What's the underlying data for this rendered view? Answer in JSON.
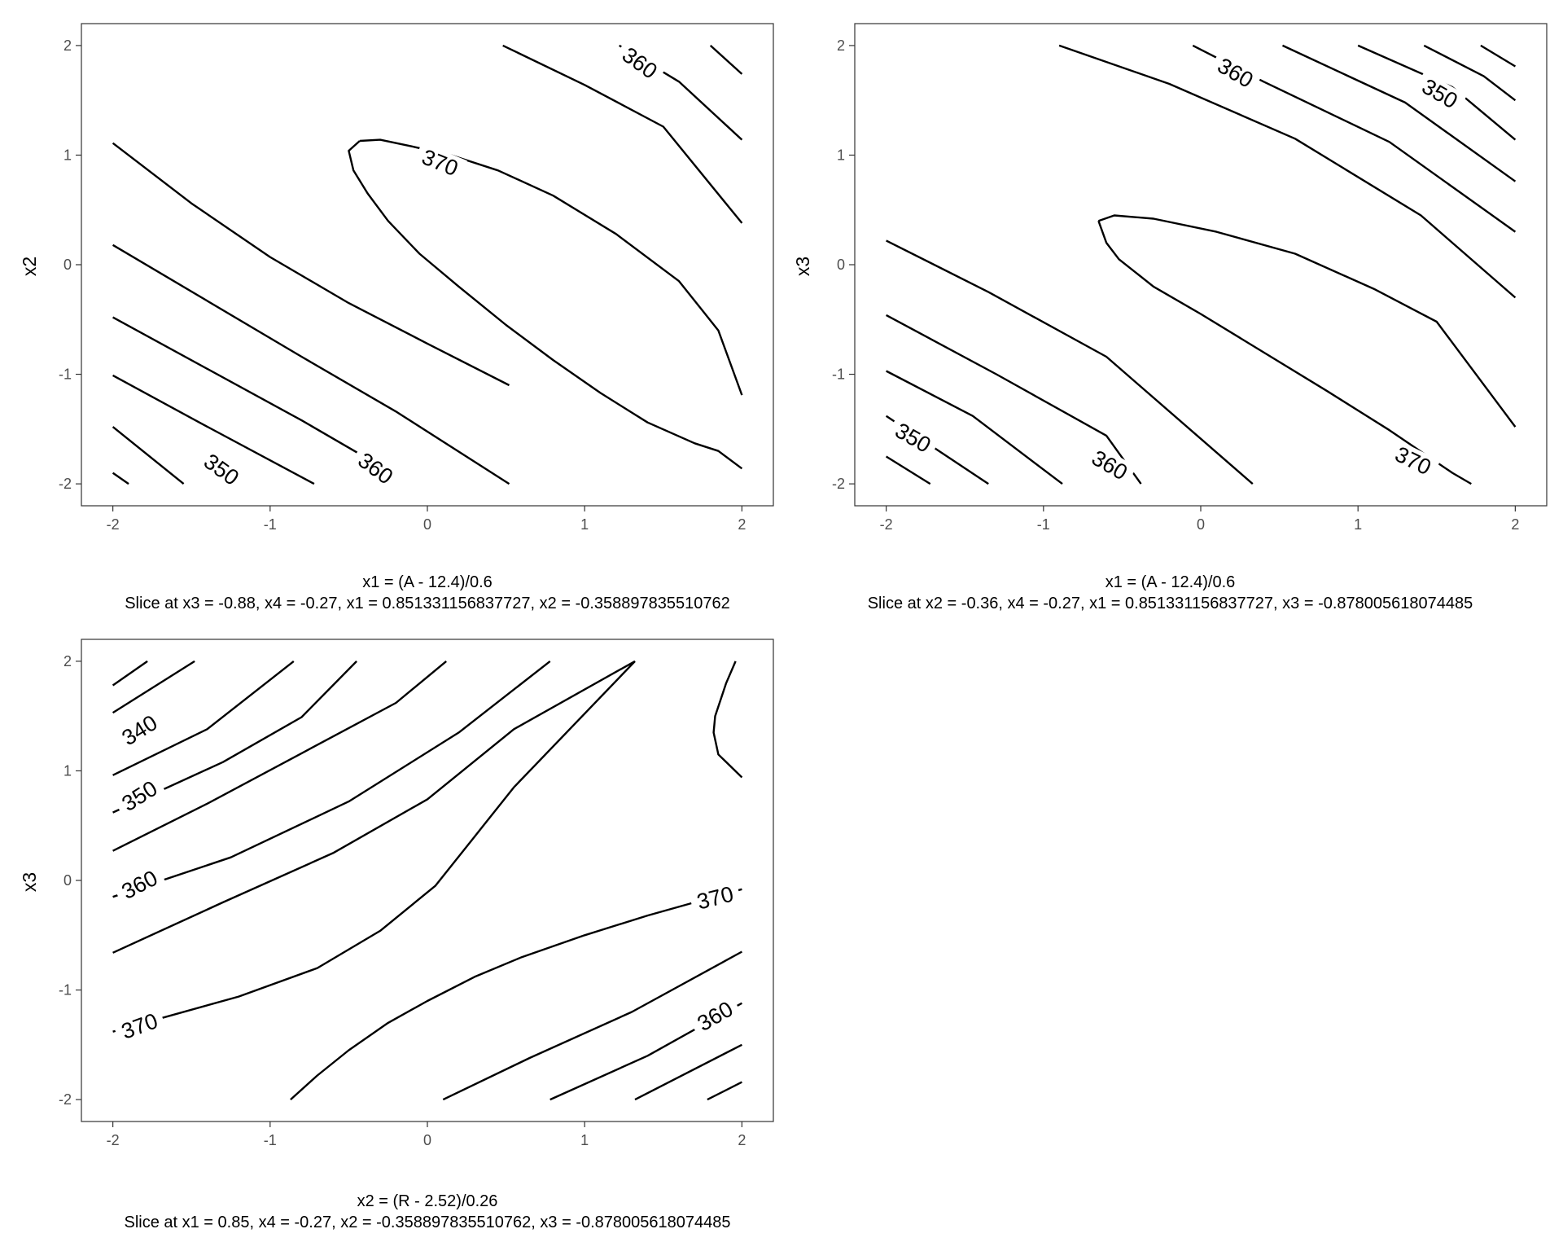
{
  "chart_data": [
    {
      "type": "contour",
      "xlabel": "x1 = (A - 12.4)/0.6",
      "ylabel": "x2",
      "caption": "Slice at x3 = -0.88, x4 = -0.27, x1 = 0.851331156837727, x2 = -0.358897835510762",
      "xlim": [
        -2.2,
        2.2
      ],
      "ylim": [
        -2.2,
        2.2
      ],
      "xticks": [
        "-2",
        "-1",
        "0",
        "1",
        "2"
      ],
      "yticks": [
        "-2",
        "-1",
        "0",
        "1",
        "2"
      ],
      "contours": [
        {
          "points": [
            [
              -2,
              -1.9
            ],
            [
              -1.9,
              -2
            ]
          ]
        },
        {
          "points": [
            [
              -2,
              -1.48
            ],
            [
              -1.55,
              -2
            ]
          ]
        },
        {
          "points": [
            [
              -2,
              -1.01
            ],
            [
              -1.45,
              -1.44
            ],
            [
              -0.72,
              -2
            ]
          ]
        },
        {
          "points": [
            [
              -2,
              -0.48
            ],
            [
              -1.4,
              -0.95
            ],
            [
              -0.8,
              -1.42
            ],
            [
              -0.2,
              -1.92
            ]
          ]
        },
        {
          "points": [
            [
              -2,
              0.18
            ],
            [
              -1.4,
              -0.33
            ],
            [
              -0.8,
              -0.84
            ],
            [
              -0.2,
              -1.34
            ],
            [
              0.52,
              -2
            ]
          ]
        },
        {
          "points": [
            [
              -2,
              1.11
            ],
            [
              -1.5,
              0.56
            ],
            [
              -1,
              0.07
            ],
            [
              -0.5,
              -0.35
            ],
            [
              0,
              -0.72
            ],
            [
              0.52,
              -1.1
            ]
          ]
        },
        {
          "points": [
            [
              -0.43,
              1.13
            ],
            [
              -0.5,
              1.04
            ],
            [
              -0.47,
              0.86
            ],
            [
              -0.38,
              0.65
            ],
            [
              -0.25,
              0.4
            ],
            [
              -0.05,
              0.1
            ],
            [
              0.2,
              -0.2
            ],
            [
              0.5,
              -0.55
            ],
            [
              0.8,
              -0.87
            ],
            [
              1.1,
              -1.17
            ],
            [
              1.4,
              -1.44
            ],
            [
              1.7,
              -1.63
            ],
            [
              1.85,
              -1.7
            ],
            [
              2,
              -1.86
            ]
          ]
        },
        {
          "points": [
            [
              -0.43,
              1.13
            ],
            [
              -0.3,
              1.14
            ],
            [
              -0.1,
              1.08
            ],
            [
              0.15,
              1
            ],
            [
              0.45,
              0.86
            ],
            [
              0.8,
              0.63
            ],
            [
              1.2,
              0.28
            ],
            [
              1.6,
              -0.15
            ],
            [
              1.85,
              -0.6
            ],
            [
              2,
              -1.19
            ]
          ]
        },
        {
          "points": [
            [
              0.48,
              2
            ],
            [
              1,
              1.64
            ],
            [
              1.5,
              1.26
            ],
            [
              2,
              0.38
            ]
          ]
        },
        {
          "points": [
            [
              1.22,
              2
            ],
            [
              1.6,
              1.67
            ],
            [
              2,
              1.14
            ]
          ]
        },
        {
          "points": [
            [
              1.8,
              2
            ],
            [
              2,
              1.74
            ]
          ]
        }
      ],
      "labels": [
        {
          "text": "350",
          "x": -1.31,
          "y": -1.87,
          "angle": 36
        },
        {
          "text": "360",
          "x": -0.33,
          "y": -1.86,
          "angle": 36
        },
        {
          "text": "370",
          "x": 0.08,
          "y": 0.93,
          "angle": 22
        },
        {
          "text": "360",
          "x": 1.35,
          "y": 1.84,
          "angle": 36
        }
      ]
    },
    {
      "type": "contour",
      "xlabel": "x1 = (A - 12.4)/0.6",
      "ylabel": "x3",
      "caption": "Slice at x2 = -0.36, x4 = -0.27, x1 = 0.851331156837727, x3 = -0.878005618074485",
      "xlim": [
        -2.2,
        2.2
      ],
      "ylim": [
        -2.2,
        2.2
      ],
      "xticks": [
        "-2",
        "-1",
        "0",
        "1",
        "2"
      ],
      "yticks": [
        "-2",
        "-1",
        "0",
        "1",
        "2"
      ],
      "contours": [
        {
          "points": [
            [
              -2,
              -1.75
            ],
            [
              -1.72,
              -2
            ]
          ]
        },
        {
          "points": [
            [
              -2,
              -1.38
            ],
            [
              -1.35,
              -2
            ]
          ]
        },
        {
          "points": [
            [
              -2,
              -0.97
            ],
            [
              -1.45,
              -1.38
            ],
            [
              -0.88,
              -2
            ]
          ]
        },
        {
          "points": [
            [
              -2,
              -0.46
            ],
            [
              -1.3,
              -1
            ],
            [
              -0.6,
              -1.56
            ],
            [
              -0.38,
              -2
            ]
          ]
        },
        {
          "points": [
            [
              -2,
              0.22
            ],
            [
              -1.35,
              -0.25
            ],
            [
              -0.6,
              -0.84
            ],
            [
              0.33,
              -2
            ]
          ]
        },
        {
          "points": [
            [
              -0.65,
              0.4
            ],
            [
              -0.6,
              0.2
            ],
            [
              -0.52,
              0.05
            ],
            [
              -0.3,
              -0.2
            ],
            [
              0,
              -0.45
            ],
            [
              0.4,
              -0.8
            ],
            [
              0.8,
              -1.15
            ],
            [
              1.2,
              -1.51
            ],
            [
              1.6,
              -1.9
            ],
            [
              1.72,
              -2
            ]
          ]
        },
        {
          "points": [
            [
              -0.65,
              0.4
            ],
            [
              -0.55,
              0.45
            ],
            [
              -0.3,
              0.42
            ],
            [
              0.1,
              0.3
            ],
            [
              0.6,
              0.1
            ],
            [
              1.1,
              -0.22
            ],
            [
              1.5,
              -0.52
            ],
            [
              2,
              -1.48
            ]
          ]
        },
        {
          "points": [
            [
              -0.9,
              2
            ],
            [
              -0.2,
              1.65
            ],
            [
              0.6,
              1.15
            ],
            [
              1.4,
              0.45
            ],
            [
              2,
              -0.3
            ]
          ]
        },
        {
          "points": [
            [
              -0.05,
              2
            ],
            [
              0.4,
              1.67
            ],
            [
              1.2,
              1.12
            ],
            [
              2,
              0.3
            ]
          ]
        },
        {
          "points": [
            [
              0.52,
              2
            ],
            [
              1.3,
              1.48
            ],
            [
              2,
              0.76
            ]
          ]
        },
        {
          "points": [
            [
              1,
              2
            ],
            [
              1.6,
              1.62
            ],
            [
              2,
              1.14
            ]
          ]
        },
        {
          "points": [
            [
              1.42,
              2
            ],
            [
              1.8,
              1.72
            ],
            [
              2,
              1.5
            ]
          ]
        },
        {
          "points": [
            [
              1.78,
              2
            ],
            [
              2,
              1.81
            ]
          ]
        }
      ],
      "labels": [
        {
          "text": "350",
          "x": -1.83,
          "y": -1.58,
          "angle": 30
        },
        {
          "text": "360",
          "x": -0.58,
          "y": -1.83,
          "angle": 30
        },
        {
          "text": "370",
          "x": 1.35,
          "y": -1.79,
          "angle": 26
        },
        {
          "text": "360",
          "x": 0.22,
          "y": 1.75,
          "angle": 30
        },
        {
          "text": "350",
          "x": 1.52,
          "y": 1.56,
          "angle": 30
        }
      ]
    },
    {
      "type": "contour",
      "xlabel": "x2 = (R - 2.52)/0.26",
      "ylabel": "x3",
      "caption": "Slice at x1 = 0.85, x4 = -0.27, x2 = -0.358897835510762, x3 = -0.878005618074485",
      "xlim": [
        -2.2,
        2.2
      ],
      "ylim": [
        -2.2,
        2.2
      ],
      "xticks": [
        "-2",
        "-1",
        "0",
        "1",
        "2"
      ],
      "yticks": [
        "-2",
        "-1",
        "0",
        "1",
        "2"
      ],
      "contours": [
        {
          "points": [
            [
              -2,
              1.78
            ],
            [
              -1.78,
              2
            ]
          ]
        },
        {
          "points": [
            [
              -2,
              1.53
            ],
            [
              -1.48,
              2
            ]
          ]
        },
        {
          "points": [
            [
              -2,
              0.96
            ],
            [
              -1.4,
              1.38
            ],
            [
              -0.85,
              2
            ]
          ]
        },
        {
          "points": [
            [
              -2,
              0.62
            ],
            [
              -1.3,
              1.08
            ],
            [
              -0.8,
              1.49
            ],
            [
              -0.45,
              2
            ]
          ]
        },
        {
          "points": [
            [
              -2,
              0.27
            ],
            [
              -1.4,
              0.7
            ],
            [
              -0.8,
              1.16
            ],
            [
              -0.2,
              1.62
            ],
            [
              0.12,
              2
            ]
          ]
        },
        {
          "points": [
            [
              -2,
              -0.15
            ],
            [
              -1.25,
              0.21
            ],
            [
              -0.5,
              0.72
            ],
            [
              0.2,
              1.35
            ],
            [
              0.78,
              2
            ]
          ]
        },
        {
          "points": [
            [
              -2,
              -0.66
            ],
            [
              -1.3,
              -0.2
            ],
            [
              -0.6,
              0.25
            ],
            [
              0,
              0.74
            ],
            [
              0.55,
              1.38
            ],
            [
              1.32,
              2
            ]
          ]
        },
        {
          "points": [
            [
              -2,
              -1.38
            ],
            [
              -1.2,
              -1.06
            ],
            [
              -0.7,
              -0.8
            ],
            [
              -0.3,
              -0.46
            ],
            [
              0.05,
              -0.05
            ],
            [
              0.3,
              0.4
            ],
            [
              0.55,
              0.85
            ],
            [
              1.32,
              2
            ]
          ]
        },
        {
          "points": [
            [
              1.96,
              2
            ],
            [
              1.9,
              1.8
            ],
            [
              1.83,
              1.5
            ],
            [
              1.82,
              1.35
            ],
            [
              1.85,
              1.15
            ],
            [
              2,
              0.94
            ]
          ]
        },
        {
          "points": [
            [
              -0.87,
              -2
            ],
            [
              -0.7,
              -1.78
            ],
            [
              -0.5,
              -1.55
            ],
            [
              -0.25,
              -1.3
            ],
            [
              0,
              -1.1
            ],
            [
              0.3,
              -0.88
            ],
            [
              0.6,
              -0.7
            ],
            [
              1,
              -0.5
            ],
            [
              1.4,
              -0.32
            ],
            [
              1.7,
              -0.2
            ],
            [
              2,
              -0.08
            ]
          ]
        },
        {
          "points": [
            [
              0.1,
              -2
            ],
            [
              0.65,
              -1.62
            ],
            [
              1.3,
              -1.2
            ],
            [
              2,
              -0.65
            ]
          ]
        },
        {
          "points": [
            [
              0.78,
              -2
            ],
            [
              1.4,
              -1.6
            ],
            [
              2,
              -1.12
            ]
          ]
        },
        {
          "points": [
            [
              1.32,
              -2
            ],
            [
              2,
              -1.5
            ]
          ]
        },
        {
          "points": [
            [
              1.78,
              -2
            ],
            [
              2,
              -1.84
            ]
          ]
        }
      ],
      "labels": [
        {
          "text": "340",
          "x": -1.83,
          "y": 1.37,
          "angle": -32
        },
        {
          "text": "350",
          "x": -1.83,
          "y": 0.77,
          "angle": -32
        },
        {
          "text": "360",
          "x": -1.83,
          "y": -0.04,
          "angle": -27
        },
        {
          "text": "370",
          "x": -1.83,
          "y": -1.33,
          "angle": -20
        },
        {
          "text": "370",
          "x": 1.83,
          "y": -0.16,
          "angle": -14
        },
        {
          "text": "360",
          "x": 1.83,
          "y": -1.24,
          "angle": -30
        }
      ]
    }
  ]
}
